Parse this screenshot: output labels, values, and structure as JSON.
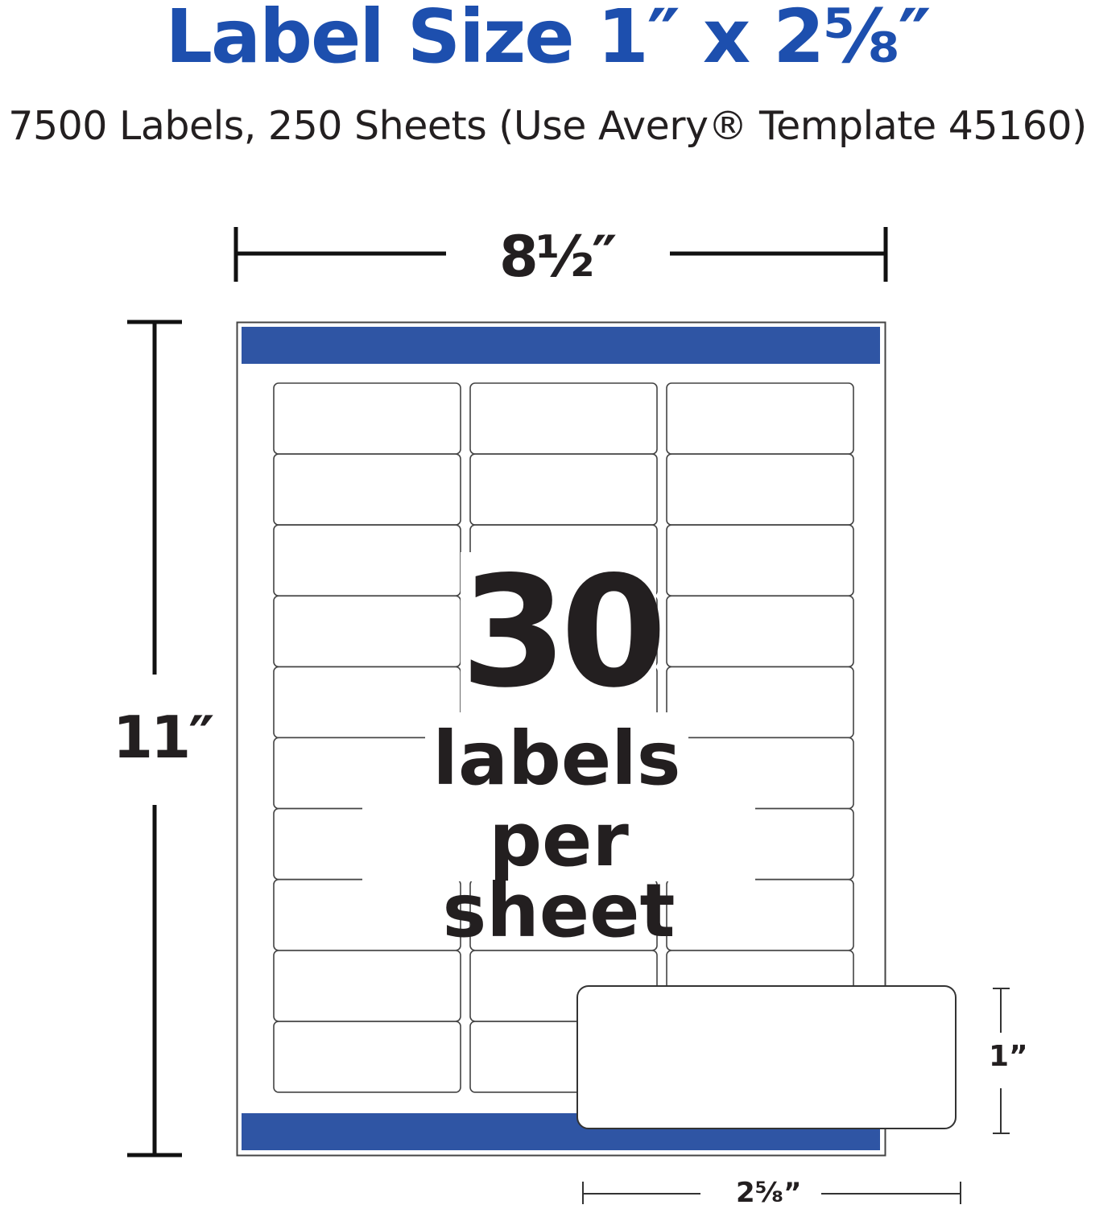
{
  "title": "Label Size 1″ x 2⅝″",
  "subtitle": "7500 Labels, 250 Sheets (Use Avery® Template 45160)",
  "sheet": {
    "width_label": "8½″",
    "height_label": "11″",
    "columns": 3,
    "rows": 10,
    "labels_count": "30",
    "labels_text_line1": "labels",
    "labels_text_line2": "per sheet"
  },
  "single_label": {
    "height_label": "1”",
    "width_label": "2⁵⁄₈”"
  },
  "colors": {
    "title": "#1d4fae",
    "bar": "#2f55a4",
    "text": "#231f20"
  }
}
